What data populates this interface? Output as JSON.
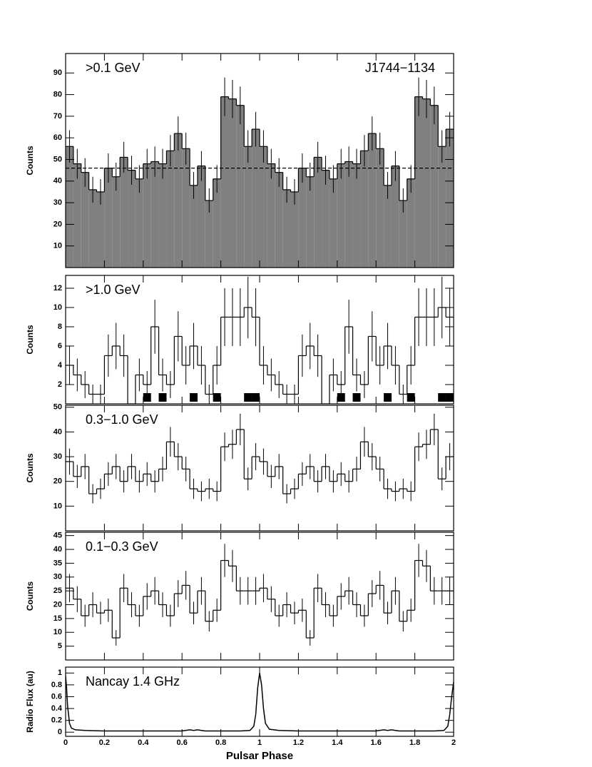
{
  "chart_data": [
    {
      "type": "histogram",
      "filled": true,
      "color": "#808080",
      "labels": [
        ">0.1 GeV",
        "J1744−1134"
      ],
      "ylabel": "Counts",
      "bins": [
        0,
        0.04,
        0.08,
        0.12,
        0.16,
        0.2,
        0.24,
        0.28,
        0.32,
        0.36,
        0.4,
        0.44,
        0.48,
        0.52,
        0.56,
        0.6,
        0.64,
        0.68,
        0.72,
        0.76,
        0.8,
        0.84,
        0.88,
        0.92,
        0.96,
        1,
        1.04,
        1.08,
        1.12,
        1.16,
        1.2,
        1.24,
        1.28,
        1.32,
        1.36,
        1.4,
        1.44,
        1.48,
        1.52,
        1.56,
        1.6,
        1.64,
        1.68,
        1.72,
        1.76,
        1.8,
        1.84,
        1.88,
        1.92,
        1.96,
        2
      ],
      "values": [
        56,
        48,
        44,
        36,
        35,
        46,
        42,
        51,
        45,
        41,
        48,
        49,
        48,
        54,
        62,
        55,
        38,
        47,
        31,
        41,
        79,
        78,
        75,
        56,
        64,
        56,
        48,
        44,
        36,
        35,
        46,
        42,
        51,
        45,
        41,
        48,
        49,
        48,
        54,
        62,
        55,
        38,
        47,
        31,
        41,
        79,
        78,
        75,
        56,
        64
      ],
      "errors": [
        7.5,
        6.9,
        6.6,
        6,
        5.9,
        6.8,
        6.5,
        7.1,
        6.7,
        6.4,
        6.9,
        7,
        6.9,
        7.3,
        7.9,
        7.4,
        6.2,
        6.9,
        5.6,
        6.4,
        8.9,
        8.8,
        8.7,
        7.5,
        8,
        7.5,
        6.9,
        6.6,
        6,
        5.9,
        6.8,
        6.5,
        7.1,
        6.7,
        6.4,
        6.9,
        7,
        6.9,
        7.3,
        7.9,
        7.4,
        6.2,
        6.9,
        5.6,
        6.4,
        8.9,
        8.8,
        8.7,
        7.5,
        8
      ],
      "hline": 46,
      "xlim": [
        0,
        2
      ],
      "ylim": [
        0,
        99
      ],
      "yticks": [
        10,
        20,
        30,
        40,
        50,
        60,
        70,
        80,
        90
      ]
    },
    {
      "type": "histogram",
      "filled": false,
      "color": "#000000",
      "labels": [
        ">1.0 GeV"
      ],
      "ylabel": "Counts",
      "bins": [
        0,
        0.04,
        0.08,
        0.12,
        0.16,
        0.2,
        0.24,
        0.28,
        0.32,
        0.36,
        0.4,
        0.44,
        0.48,
        0.52,
        0.56,
        0.6,
        0.64,
        0.68,
        0.72,
        0.76,
        0.8,
        0.84,
        0.88,
        0.92,
        0.96,
        1,
        1.04,
        1.08,
        1.12,
        1.16,
        1.2,
        1.24,
        1.28,
        1.32,
        1.36,
        1.4,
        1.44,
        1.48,
        1.52,
        1.56,
        1.6,
        1.64,
        1.68,
        1.72,
        1.76,
        1.8,
        1.84,
        1.88,
        1.92,
        1.96,
        2
      ],
      "values": [
        4,
        3,
        2,
        1,
        1,
        5,
        6,
        5,
        0,
        3,
        2,
        8,
        3,
        2,
        7,
        4,
        6,
        4,
        1,
        4,
        9,
        9,
        9,
        10,
        9,
        4,
        3,
        2,
        1,
        1,
        5,
        6,
        5,
        0,
        3,
        2,
        8,
        3,
        2,
        7,
        4,
        6,
        4,
        1,
        4,
        9,
        9,
        9,
        10,
        9
      ],
      "errors": [
        2,
        1.7,
        1.4,
        1,
        1,
        2.2,
        2.4,
        2.2,
        0,
        1.7,
        1.4,
        2.8,
        1.7,
        1.4,
        2.6,
        2,
        2.4,
        2,
        1,
        2,
        3,
        3,
        3,
        3.2,
        3,
        2,
        1.7,
        1.4,
        1,
        1,
        2.2,
        2.4,
        2.2,
        0,
        1.7,
        1.4,
        2.8,
        1.7,
        1.4,
        2.6,
        2,
        2.4,
        2,
        1,
        2,
        3,
        3,
        3,
        3.2,
        3
      ],
      "marker_x": [
        0.42,
        0.5,
        0.66,
        0.78,
        0.94,
        0.98,
        1.42,
        1.5,
        1.66,
        1.78,
        1.94,
        1.98
      ],
      "xlim": [
        0,
        2
      ],
      "ylim": [
        0,
        13.33
      ],
      "yticks": [
        2,
        4,
        6,
        8,
        10,
        12
      ]
    },
    {
      "type": "histogram",
      "filled": false,
      "color": "#000000",
      "labels": [
        "0.3−1.0 GeV"
      ],
      "ylabel": "Counts",
      "bins": [
        0,
        0.04,
        0.08,
        0.12,
        0.16,
        0.2,
        0.24,
        0.28,
        0.32,
        0.36,
        0.4,
        0.44,
        0.48,
        0.52,
        0.56,
        0.6,
        0.64,
        0.68,
        0.72,
        0.76,
        0.8,
        0.84,
        0.88,
        0.92,
        0.96,
        1,
        1.04,
        1.08,
        1.12,
        1.16,
        1.2,
        1.24,
        1.28,
        1.32,
        1.36,
        1.4,
        1.44,
        1.48,
        1.52,
        1.56,
        1.6,
        1.64,
        1.68,
        1.72,
        1.76,
        1.8,
        1.84,
        1.88,
        1.92,
        1.96,
        2
      ],
      "values": [
        28,
        22,
        26,
        15,
        17,
        23,
        26,
        20,
        26,
        20,
        23,
        20,
        25,
        36,
        30,
        25,
        17,
        16,
        17,
        16,
        34,
        35,
        41,
        21,
        30,
        28,
        22,
        26,
        15,
        17,
        23,
        26,
        20,
        26,
        20,
        23,
        20,
        25,
        36,
        30,
        25,
        17,
        16,
        17,
        16,
        34,
        35,
        41,
        21,
        30
      ],
      "errors": [
        5.3,
        4.7,
        5.1,
        3.9,
        4.1,
        4.8,
        5.1,
        4.5,
        5.1,
        4.5,
        4.8,
        4.5,
        5,
        6,
        5.5,
        5,
        4.1,
        4,
        4.1,
        4,
        5.8,
        5.9,
        6.4,
        4.6,
        5.5,
        5.3,
        4.7,
        5.1,
        3.9,
        4.1,
        4.8,
        5.1,
        4.5,
        5.1,
        4.5,
        4.8,
        4.5,
        5,
        6,
        5.5,
        5,
        4.1,
        4,
        4.1,
        4,
        5.8,
        5.9,
        6.4,
        4.6,
        5.5
      ],
      "xlim": [
        0,
        2
      ],
      "ylim": [
        0,
        50.8
      ],
      "yticks": [
        10,
        20,
        30,
        40,
        50
      ]
    },
    {
      "type": "histogram",
      "filled": false,
      "color": "#000000",
      "labels": [
        "0.1−0.3 GeV"
      ],
      "ylabel": "Counts",
      "bins": [
        0,
        0.04,
        0.08,
        0.12,
        0.16,
        0.2,
        0.24,
        0.28,
        0.32,
        0.36,
        0.4,
        0.44,
        0.48,
        0.52,
        0.56,
        0.6,
        0.64,
        0.68,
        0.72,
        0.76,
        0.8,
        0.84,
        0.88,
        0.92,
        0.96,
        1,
        1.04,
        1.08,
        1.12,
        1.16,
        1.2,
        1.24,
        1.28,
        1.32,
        1.36,
        1.4,
        1.44,
        1.48,
        1.52,
        1.56,
        1.6,
        1.64,
        1.68,
        1.72,
        1.76,
        1.8,
        1.84,
        1.88,
        1.92,
        1.96,
        2
      ],
      "values": [
        26,
        22,
        16,
        20,
        17,
        18,
        8,
        26,
        20,
        16,
        23,
        25,
        20,
        16,
        24,
        27,
        17,
        25,
        14,
        18,
        36,
        34,
        25,
        25,
        25,
        26,
        22,
        16,
        20,
        17,
        18,
        8,
        26,
        20,
        16,
        23,
        25,
        20,
        16,
        24,
        27,
        17,
        25,
        14,
        18,
        36,
        34,
        25,
        25,
        25
      ],
      "errors": [
        5.1,
        4.7,
        4,
        4.5,
        4.1,
        4.2,
        2.8,
        5.1,
        4.5,
        4,
        4.8,
        5,
        4.5,
        4,
        4.9,
        5.2,
        4.1,
        5,
        3.7,
        4.2,
        6,
        5.8,
        5,
        5,
        5,
        5.1,
        4.7,
        4,
        4.5,
        4.1,
        4.2,
        2.8,
        5.1,
        4.5,
        4,
        4.8,
        5,
        4.5,
        4,
        4.9,
        5.2,
        4.1,
        5,
        3.7,
        4.2,
        6,
        5.8,
        5,
        5,
        5
      ],
      "xlim": [
        0,
        2
      ],
      "ylim": [
        0,
        46.2
      ],
      "yticks": [
        5,
        10,
        15,
        20,
        25,
        30,
        35,
        40,
        45
      ]
    },
    {
      "type": "line",
      "color": "#000000",
      "labels": [
        "Nancay 1.4 GHz"
      ],
      "ylabel": "Radio Flux (au)",
      "xlabel": "Pulsar Phase",
      "x": [
        0,
        0.005,
        0.01,
        0.02,
        0.03,
        0.05,
        0.1,
        0.2,
        0.3,
        0.4,
        0.5,
        0.6,
        0.64,
        0.66,
        0.68,
        0.7,
        0.72,
        0.8,
        0.9,
        0.95,
        0.97,
        0.98,
        0.99,
        1,
        1.01,
        1.02,
        1.03,
        1.05,
        1.1,
        1.2,
        1.3,
        1.4,
        1.5,
        1.6,
        1.64,
        1.66,
        1.68,
        1.7,
        1.72,
        1.8,
        1.9,
        1.95,
        1.97,
        1.98,
        1.99,
        2
      ],
      "values": [
        0.95,
        0.75,
        0.45,
        0.15,
        0.07,
        0.04,
        0.03,
        0.02,
        0.02,
        0.02,
        0.02,
        0.02,
        0.04,
        0.03,
        0.04,
        0.03,
        0.02,
        0.02,
        0.02,
        0.03,
        0.1,
        0.3,
        0.75,
        1,
        0.8,
        0.4,
        0.15,
        0.05,
        0.03,
        0.02,
        0.02,
        0.02,
        0.02,
        0.02,
        0.04,
        0.03,
        0.04,
        0.03,
        0.02,
        0.02,
        0.02,
        0.03,
        0.1,
        0.3,
        0.6,
        0.85
      ],
      "xlim": [
        0,
        2
      ],
      "ylim": [
        -0.07,
        1.1
      ],
      "yticks": [
        0,
        0.2,
        0.4,
        0.6,
        0.8,
        1
      ],
      "xticks": [
        0,
        0.2,
        0.4,
        0.6,
        0.8,
        1,
        1.2,
        1.4,
        1.6,
        1.8,
        2
      ]
    }
  ]
}
